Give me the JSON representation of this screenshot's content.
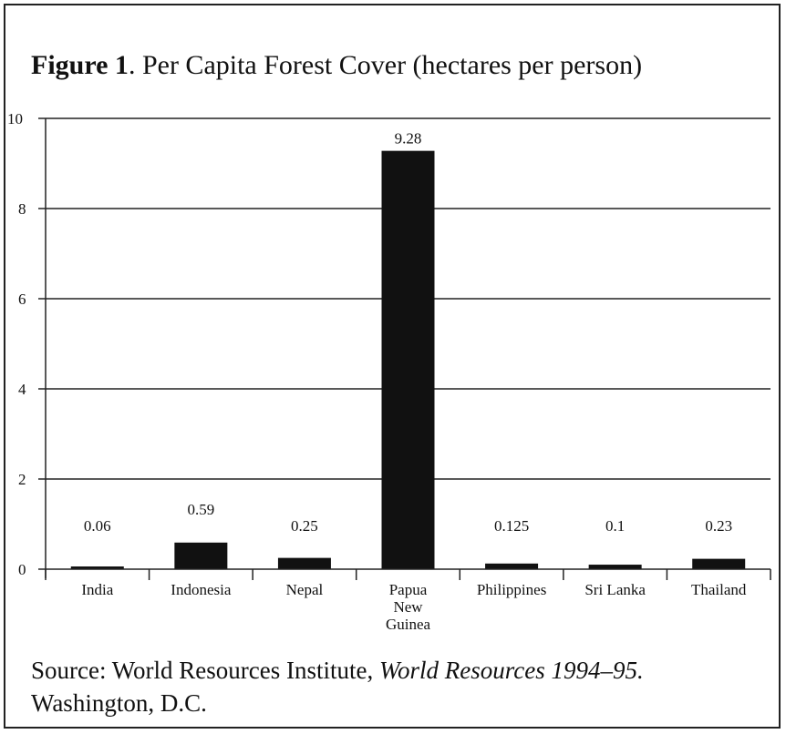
{
  "title": {
    "bold": "Figure 1",
    "rest": ". Per Capita Forest Cover (hectares per person)"
  },
  "source": {
    "prefix": "Source: World Resources Institute, ",
    "italic": "World Resources 1994–95.",
    "suffix": " Washington, D.C."
  },
  "chart_data": {
    "type": "bar",
    "title": "Figure 1. Per Capita Forest Cover (hectares per person)",
    "xlabel": "",
    "ylabel": "",
    "ylim": [
      0,
      10
    ],
    "yticks": [
      0,
      2,
      4,
      6,
      8,
      10
    ],
    "grid": true,
    "categories": [
      [
        "India"
      ],
      [
        "Indonesia"
      ],
      [
        "Nepal"
      ],
      [
        "Papua",
        "New",
        "Guinea"
      ],
      [
        "Philippines"
      ],
      [
        "Sri Lanka"
      ],
      [
        "Thailand"
      ]
    ],
    "values": [
      0.06,
      0.59,
      0.25,
      9.28,
      0.125,
      0.1,
      0.23
    ],
    "value_labels": [
      "0.06",
      "0.59",
      "0.25",
      "9.28",
      "0.125",
      "0.1",
      "0.23"
    ],
    "bar_color": "#111111"
  }
}
